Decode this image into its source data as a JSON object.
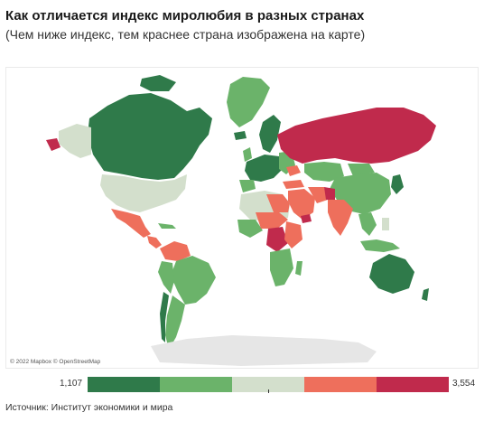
{
  "header": {
    "title": "Как отличается индекс миролюбия в разных странах",
    "subtitle": "(Чем ниже индекс, тем краснее страна изображена на карте)"
  },
  "map": {
    "attribution": "© 2022 Mapbox © OpenStreetMap",
    "colors": {
      "water": "#ffffff",
      "no_data": "#e6e6e6",
      "class_1": "#2f7a4a",
      "class_2": "#6bb36a",
      "class_3": "#d3dfcc",
      "class_4": "#ee6f5c",
      "class_5": "#c02a4c"
    }
  },
  "legend": {
    "min_label": "1,107",
    "max_label": "3,554",
    "colors": [
      "#2f7a4a",
      "#6bb36a",
      "#d3dfcc",
      "#ee6f5c",
      "#c02a4c"
    ]
  },
  "footer": {
    "source": "Источник: Институт экономики и мира"
  }
}
